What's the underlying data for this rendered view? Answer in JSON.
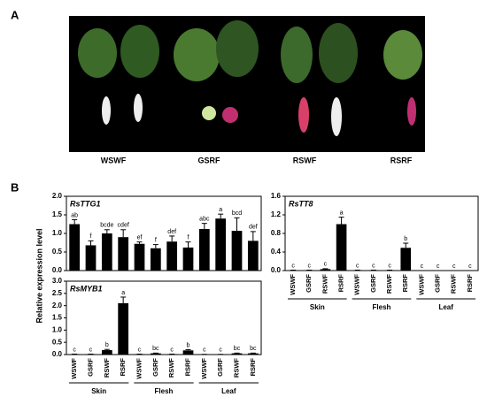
{
  "panel_a": {
    "label": "A",
    "labels": [
      "WSWF",
      "GSRF",
      "RSWF",
      "RSRF"
    ]
  },
  "panel_b": {
    "label": "B",
    "y_label": "Relative expression level"
  },
  "chart_data": [
    {
      "type": "bar",
      "title": "RsTTG1",
      "color": "#000000",
      "values": [
        1.25,
        0.68,
        1.0,
        0.9,
        0.72,
        0.6,
        0.78,
        0.62,
        1.12,
        1.4,
        1.07,
        0.8
      ],
      "errors": [
        0.12,
        0.12,
        0.1,
        0.2,
        0.05,
        0.1,
        0.15,
        0.15,
        0.15,
        0.12,
        0.35,
        0.25
      ],
      "annotations": [
        "ab",
        "f",
        "bcde",
        "cdef",
        "ef",
        "f",
        "def",
        "f",
        "abc",
        "a",
        "bcd",
        "def"
      ],
      "ylim": [
        0,
        2
      ],
      "yticks": [
        {
          "value": 0,
          "label": "0.0"
        },
        0.5,
        {
          "value": 1,
          "label": "1.0"
        },
        1.5,
        {
          "value": 2,
          "label": "2.0"
        }
      ]
    },
    {
      "type": "bar",
      "title": "RsMYB1",
      "color": "#000000",
      "categories": [
        "WSWF",
        "GSRF",
        "RSWF",
        "RSRF",
        "WSWF",
        "GSRF",
        "RSWF",
        "RSRF",
        "WSWF",
        "GSRF",
        "RSWF",
        "RSRF"
      ],
      "groups": [
        "Skin",
        "Flesh",
        "Leaf"
      ],
      "values": [
        0.02,
        0.02,
        0.18,
        2.1,
        0.02,
        0.05,
        0.02,
        0.17,
        0.01,
        0.01,
        0.05,
        0.05
      ],
      "errors": [
        0,
        0,
        0.03,
        0.25,
        0,
        0.01,
        0,
        0.03,
        0,
        0,
        0.01,
        0.01
      ],
      "annotations": [
        "c",
        "c",
        "b",
        "a",
        "c",
        "bc",
        "c",
        "b",
        "c",
        "c",
        "bc",
        "bc"
      ],
      "ylim": [
        0,
        3
      ],
      "yticks": [
        {
          "value": 0,
          "label": "0.0"
        },
        0.5,
        {
          "value": 1,
          "label": "1.0"
        },
        1.5,
        {
          "value": 2,
          "label": "2.0"
        },
        2.5,
        {
          "value": 3,
          "label": "3.0"
        }
      ]
    },
    {
      "type": "bar",
      "title": "RsTT8",
      "color": "#000000",
      "categories": [
        "WSWF",
        "GSRF",
        "RSWF",
        "RSRF",
        "WSWF",
        "GSRF",
        "RSWF",
        "RSRF",
        "WSWF",
        "GSRF",
        "RSWF",
        "RSRF"
      ],
      "groups": [
        "Skin",
        "Flesh",
        "Leaf"
      ],
      "values": [
        0.01,
        0.01,
        0.03,
        1.0,
        0.01,
        0.01,
        0.01,
        0.49,
        0,
        0,
        0,
        0
      ],
      "errors": [
        0,
        0,
        0.01,
        0.15,
        0,
        0,
        0,
        0.1,
        0,
        0,
        0,
        0
      ],
      "annotations": [
        "c",
        "c",
        "c",
        "a",
        "c",
        "c",
        "c",
        "b",
        "c",
        "c",
        "c",
        "c"
      ],
      "ylim": [
        0,
        1.6
      ],
      "yticks": [
        {
          "value": 0,
          "label": "0.0"
        },
        0.4,
        0.8,
        1.2,
        1.6
      ]
    }
  ]
}
